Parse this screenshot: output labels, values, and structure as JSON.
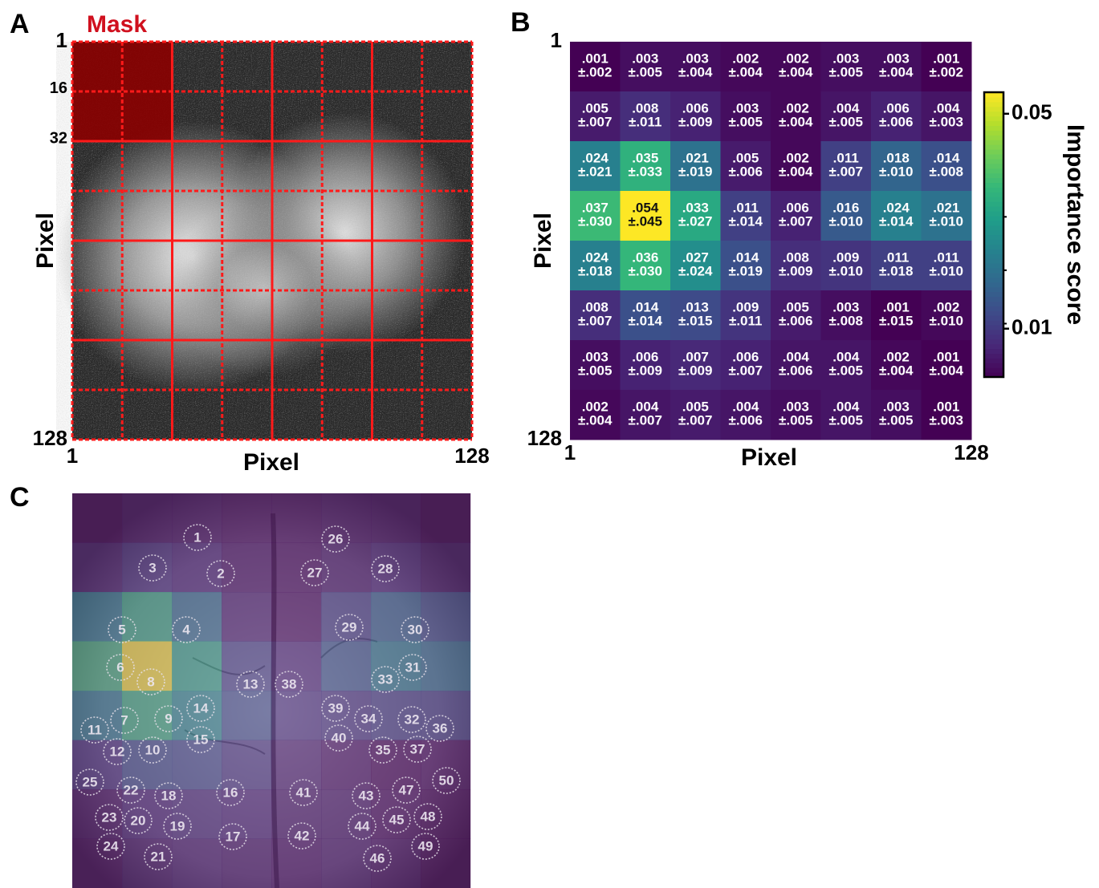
{
  "panel_a": {
    "letter": "A",
    "annotation": "Mask",
    "xlabel": "Pixel",
    "ylabel": "Pixel",
    "xlim": [
      1,
      128
    ],
    "ylim": [
      1,
      128
    ],
    "xticks": [
      1,
      128
    ],
    "yticks": [
      1,
      16,
      32,
      128
    ]
  },
  "panel_b": {
    "letter": "B",
    "type": "heatmap",
    "xlabel": "Pixel",
    "ylabel": "Pixel",
    "xlim": [
      1,
      128
    ],
    "ylim": [
      1,
      128
    ],
    "xticks": [
      1,
      128
    ],
    "yticks": [
      1,
      128
    ],
    "colorbar_label": "Importance score",
    "colorbar_lim": [
      0.001,
      0.054
    ],
    "colorbar_ticks": [
      0.01,
      0.05
    ],
    "values": [
      [
        0.001,
        0.003,
        0.003,
        0.002,
        0.002,
        0.003,
        0.003,
        0.001
      ],
      [
        0.005,
        0.008,
        0.006,
        0.003,
        0.002,
        0.004,
        0.006,
        0.004
      ],
      [
        0.024,
        0.035,
        0.021,
        0.005,
        0.002,
        0.011,
        0.018,
        0.014
      ],
      [
        0.037,
        0.054,
        0.033,
        0.011,
        0.006,
        0.016,
        0.024,
        0.021
      ],
      [
        0.024,
        0.036,
        0.027,
        0.014,
        0.008,
        0.009,
        0.011,
        0.011
      ],
      [
        0.008,
        0.014,
        0.013,
        0.009,
        0.005,
        0.003,
        0.001,
        0.002
      ],
      [
        0.003,
        0.006,
        0.007,
        0.006,
        0.004,
        0.004,
        0.002,
        0.001
      ],
      [
        0.002,
        0.004,
        0.005,
        0.004,
        0.003,
        0.004,
        0.003,
        0.001
      ]
    ],
    "value_labels": [
      [
        ".001",
        ".003",
        ".003",
        ".002",
        ".002",
        ".003",
        ".003",
        ".001"
      ],
      [
        ".005",
        ".008",
        ".006",
        ".003",
        ".002",
        ".004",
        ".006",
        ".004"
      ],
      [
        ".024",
        ".035",
        ".021",
        ".005",
        ".002",
        ".011",
        ".018",
        ".014"
      ],
      [
        ".037",
        ".054",
        ".033",
        ".011",
        ".006",
        ".016",
        ".024",
        ".021"
      ],
      [
        ".024",
        ".036",
        ".027",
        ".014",
        ".008",
        ".009",
        ".011",
        ".011"
      ],
      [
        ".008",
        ".014",
        ".013",
        ".009",
        ".005",
        ".003",
        ".001",
        ".002"
      ],
      [
        ".003",
        ".006",
        ".007",
        ".006",
        ".004",
        ".004",
        ".002",
        ".001"
      ],
      [
        ".002",
        ".004",
        ".005",
        ".004",
        ".003",
        ".004",
        ".003",
        ".001"
      ]
    ],
    "errors": [
      [
        0.002,
        0.005,
        0.004,
        0.004,
        0.004,
        0.005,
        0.004,
        0.002
      ],
      [
        0.007,
        0.011,
        0.009,
        0.005,
        0.004,
        0.005,
        0.006,
        0.003
      ],
      [
        0.021,
        0.033,
        0.019,
        0.006,
        0.004,
        0.007,
        0.01,
        0.008
      ],
      [
        0.03,
        0.045,
        0.027,
        0.014,
        0.007,
        0.01,
        0.014,
        0.01
      ],
      [
        0.018,
        0.03,
        0.024,
        0.019,
        0.009,
        0.01,
        0.018,
        0.01
      ],
      [
        0.007,
        0.014,
        0.015,
        0.011,
        0.006,
        0.008,
        0.015,
        0.01
      ],
      [
        0.005,
        0.009,
        0.009,
        0.007,
        0.006,
        0.005,
        0.004,
        0.004
      ],
      [
        0.004,
        0.007,
        0.007,
        0.006,
        0.005,
        0.005,
        0.005,
        0.003
      ]
    ],
    "error_labels": [
      [
        "±.002",
        "±.005",
        "±.004",
        "±.004",
        "±.004",
        "±.005",
        "±.004",
        "±.002"
      ],
      [
        "±.007",
        "±.011",
        "±.009",
        "±.005",
        "±.004",
        "±.005",
        "±.006",
        "±.003"
      ],
      [
        "±.021",
        "±.033",
        "±.019",
        "±.006",
        "±.004",
        "±.007",
        "±.010",
        "±.008"
      ],
      [
        "±.030",
        "±.045",
        "±.027",
        "±.014",
        "±.007",
        "±.010",
        "±.014",
        "±.010"
      ],
      [
        "±.018",
        "±.030",
        "±.024",
        "±.019",
        "±.009",
        "±.010",
        "±.018",
        "±.010"
      ],
      [
        "±.007",
        "±.014",
        "±.015",
        "±.011",
        "±.006",
        "±.008",
        "±.015",
        "±.010"
      ],
      [
        "±.005",
        "±.009",
        "±.009",
        "±.007",
        "±.006",
        "±.005",
        "±.004",
        "±.004"
      ],
      [
        "±.004",
        "±.007",
        "±.007",
        "±.006",
        "±.005",
        "±.005",
        "±.005",
        "±.003"
      ]
    ]
  },
  "panel_c": {
    "letter": "C",
    "electrodes": [
      1,
      2,
      3,
      4,
      5,
      6,
      7,
      8,
      9,
      10,
      11,
      12,
      13,
      14,
      15,
      16,
      17,
      18,
      19,
      20,
      21,
      22,
      23,
      24,
      25,
      26,
      27,
      28,
      29,
      30,
      31,
      32,
      33,
      34,
      35,
      36,
      37,
      38,
      39,
      40,
      41,
      42,
      43,
      44,
      45,
      46,
      47,
      48,
      49,
      50
    ]
  }
}
